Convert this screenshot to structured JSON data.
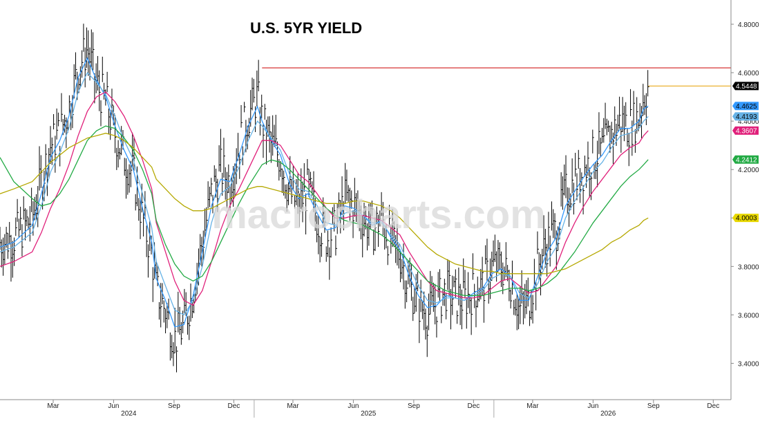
{
  "chart_data": {
    "type": "line",
    "title": "U.S. 5YR YIELD",
    "watermark": "macrocharts.com",
    "x_range": [
      "2023-12-11",
      "2026-12-28"
    ],
    "ylim": [
      3.25,
      4.9
    ],
    "y_ticks": [
      "4.8000",
      "4.6000",
      "4.4000",
      "4.2000",
      "4.0000",
      "3.8000",
      "3.6000",
      "3.4000"
    ],
    "month_ticks": [
      {
        "date": "2024-03-01",
        "label": "Mar"
      },
      {
        "date": "2024-06-01",
        "label": "Jun"
      },
      {
        "date": "2024-09-01",
        "label": "Sep"
      },
      {
        "date": "2024-12-01",
        "label": "Dec"
      },
      {
        "date": "2025-03-01",
        "label": "Mar"
      },
      {
        "date": "2025-06-01",
        "label": "Jun"
      },
      {
        "date": "2025-09-01",
        "label": "Sep"
      },
      {
        "date": "2025-12-01",
        "label": "Dec"
      },
      {
        "date": "2026-03-01",
        "label": "Mar"
      },
      {
        "date": "2026-06-01",
        "label": "Jun"
      },
      {
        "date": "2026-09-01",
        "label": "Sep"
      },
      {
        "date": "2026-12-01",
        "label": "Dec"
      }
    ],
    "year_labels": [
      {
        "date": "2024-07-15",
        "label": "2024"
      },
      {
        "date": "2025-07-15",
        "label": "2025"
      },
      {
        "date": "2026-07-15",
        "label": "2026"
      }
    ],
    "year_dividers": [
      "2025-01-01",
      "2026-01-01"
    ],
    "price_series": {
      "style": "hlc-bars",
      "color": "#000000",
      "x": [
        "2023-12-11",
        "2024-01-01",
        "2024-01-29",
        "2024-02-12",
        "2024-02-26",
        "2024-03-11",
        "2024-03-25",
        "2024-04-08",
        "2024-04-22",
        "2024-05-06",
        "2024-05-20",
        "2024-06-03",
        "2024-06-17",
        "2024-07-01",
        "2024-07-15",
        "2024-07-29",
        "2024-08-05",
        "2024-08-19",
        "2024-09-02",
        "2024-09-16",
        "2024-09-30",
        "2024-10-14",
        "2024-10-28",
        "2024-11-11",
        "2024-11-25",
        "2024-12-09",
        "2024-12-23",
        "2025-01-06",
        "2025-01-13",
        "2025-01-27",
        "2025-02-10",
        "2025-02-24",
        "2025-03-10",
        "2025-03-24",
        "2025-04-07",
        "2025-04-21",
        "2025-05-05",
        "2025-05-19",
        "2025-06-02",
        "2025-06-16",
        "2025-06-30",
        "2025-07-14",
        "2025-07-28",
        "2025-08-11",
        "2025-08-25",
        "2025-09-08",
        "2025-09-22",
        "2025-10-06",
        "2025-10-20",
        "2025-11-03",
        "2025-11-17",
        "2025-12-01",
        "2025-12-15",
        "2025-12-29",
        "2026-01-12",
        "2026-01-26",
        "2026-02-09",
        "2026-02-23",
        "2026-03-09",
        "2026-03-23",
        "2026-04-06",
        "2026-04-20",
        "2026-05-04",
        "2026-05-18",
        "2026-06-01",
        "2026-06-15",
        "2026-06-29",
        "2026-07-13",
        "2026-07-27",
        "2026-08-10",
        "2026-08-17",
        "2026-08-24"
      ],
      "values": [
        3.9,
        3.92,
        4.0,
        4.15,
        4.3,
        4.35,
        4.45,
        4.62,
        4.7,
        4.55,
        4.48,
        4.35,
        4.25,
        4.18,
        4.0,
        3.85,
        3.7,
        3.62,
        3.5,
        3.55,
        3.7,
        3.9,
        4.1,
        4.2,
        4.15,
        4.3,
        4.42,
        4.5,
        4.4,
        4.3,
        4.25,
        4.1,
        4.05,
        4.12,
        4.0,
        3.92,
        3.95,
        4.08,
        4.05,
        4.0,
        3.95,
        4.0,
        3.9,
        3.85,
        3.72,
        3.65,
        3.6,
        3.65,
        3.7,
        3.67,
        3.66,
        3.7,
        3.72,
        3.8,
        3.8,
        3.75,
        3.62,
        3.65,
        3.8,
        3.9,
        3.95,
        4.1,
        4.15,
        4.2,
        4.25,
        4.28,
        4.35,
        4.4,
        4.38,
        4.42,
        4.5,
        4.5448
      ]
    },
    "series": [
      {
        "color": "#3399ff",
        "last_value": 4.4625,
        "values": [
          3.88,
          3.9,
          3.97,
          4.1,
          4.25,
          4.32,
          4.42,
          4.58,
          4.66,
          4.57,
          4.5,
          4.38,
          4.28,
          4.2,
          4.04,
          3.9,
          3.75,
          3.66,
          3.55,
          3.56,
          3.68,
          3.86,
          4.05,
          4.16,
          4.15,
          4.26,
          4.38,
          4.46,
          4.4,
          4.32,
          4.26,
          4.14,
          4.08,
          4.1,
          4.02,
          3.95,
          3.96,
          4.05,
          4.04,
          4.01,
          3.97,
          3.99,
          3.92,
          3.87,
          3.76,
          3.68,
          3.63,
          3.64,
          3.68,
          3.67,
          3.66,
          3.69,
          3.71,
          3.77,
          3.79,
          3.76,
          3.66,
          3.66,
          3.76,
          3.86,
          3.92,
          4.05,
          4.11,
          4.17,
          4.22,
          4.26,
          4.32,
          4.37,
          4.37,
          4.4,
          4.45,
          4.4625
        ]
      },
      {
        "color": "#66b2e6",
        "last_value": 4.4193,
        "values": [
          3.86,
          3.88,
          3.94,
          4.05,
          4.19,
          4.27,
          4.37,
          4.52,
          4.6,
          4.56,
          4.51,
          4.42,
          4.32,
          4.24,
          4.1,
          3.96,
          3.82,
          3.72,
          3.62,
          3.6,
          3.66,
          3.8,
          3.98,
          4.1,
          4.13,
          4.21,
          4.32,
          4.4,
          4.38,
          4.33,
          4.28,
          4.18,
          4.12,
          4.11,
          4.05,
          3.98,
          3.97,
          4.02,
          4.03,
          4.01,
          3.98,
          3.98,
          3.93,
          3.89,
          3.8,
          3.72,
          3.66,
          3.65,
          3.67,
          3.67,
          3.66,
          3.68,
          3.7,
          3.75,
          3.77,
          3.76,
          3.69,
          3.67,
          3.73,
          3.82,
          3.88,
          4.0,
          4.07,
          4.13,
          4.19,
          4.23,
          4.29,
          4.34,
          4.35,
          4.37,
          4.4,
          4.4193
        ]
      },
      {
        "color": "#e0207a",
        "last_value": 4.3607,
        "values": [
          3.8,
          3.82,
          3.86,
          3.94,
          4.04,
          4.12,
          4.22,
          4.34,
          4.44,
          4.5,
          4.52,
          4.48,
          4.42,
          4.34,
          4.24,
          4.12,
          3.98,
          3.86,
          3.74,
          3.66,
          3.64,
          3.7,
          3.82,
          3.95,
          4.05,
          4.12,
          4.2,
          4.28,
          4.32,
          4.32,
          4.3,
          4.24,
          4.18,
          4.15,
          4.1,
          4.04,
          4.0,
          4.0,
          4.01,
          4.01,
          4.0,
          3.99,
          3.96,
          3.93,
          3.86,
          3.8,
          3.74,
          3.7,
          3.69,
          3.68,
          3.67,
          3.67,
          3.68,
          3.71,
          3.74,
          3.75,
          3.72,
          3.69,
          3.7,
          3.75,
          3.8,
          3.9,
          3.98,
          4.05,
          4.11,
          4.16,
          4.21,
          4.26,
          4.29,
          4.31,
          4.34,
          4.3607
        ]
      },
      {
        "color": "#22aa44",
        "last_value": 4.2412,
        "values": [
          4.25,
          4.15,
          4.08,
          4.05,
          4.06,
          4.1,
          4.16,
          4.24,
          4.32,
          4.36,
          4.38,
          4.37,
          4.33,
          4.28,
          4.2,
          4.1,
          3.99,
          3.89,
          3.81,
          3.76,
          3.74,
          3.76,
          3.82,
          3.9,
          3.98,
          4.06,
          4.13,
          4.19,
          4.22,
          4.24,
          4.23,
          4.2,
          4.16,
          4.12,
          4.08,
          4.04,
          4.01,
          3.99,
          3.98,
          3.97,
          3.95,
          3.93,
          3.9,
          3.86,
          3.82,
          3.78,
          3.74,
          3.72,
          3.7,
          3.69,
          3.68,
          3.68,
          3.68,
          3.69,
          3.7,
          3.71,
          3.71,
          3.7,
          3.71,
          3.73,
          3.76,
          3.81,
          3.86,
          3.92,
          3.98,
          4.03,
          4.08,
          4.13,
          4.17,
          4.2,
          4.22,
          4.2412
        ]
      },
      {
        "color": "#b5a800",
        "last_value": 4.0003,
        "values": [
          4.1,
          4.12,
          4.15,
          4.19,
          4.23,
          4.26,
          4.29,
          4.31,
          4.33,
          4.34,
          4.35,
          4.34,
          4.32,
          4.29,
          4.25,
          4.21,
          4.16,
          4.12,
          4.08,
          4.05,
          4.03,
          4.03,
          4.04,
          4.06,
          4.08,
          4.1,
          4.12,
          4.13,
          4.13,
          4.12,
          4.11,
          4.1,
          4.09,
          4.08,
          4.07,
          4.06,
          4.06,
          4.06,
          4.07,
          4.07,
          4.06,
          4.05,
          4.03,
          4.0,
          3.96,
          3.92,
          3.88,
          3.85,
          3.83,
          3.81,
          3.8,
          3.79,
          3.78,
          3.78,
          3.77,
          3.77,
          3.77,
          3.77,
          3.77,
          3.77,
          3.78,
          3.79,
          3.81,
          3.83,
          3.85,
          3.87,
          3.9,
          3.92,
          3.95,
          3.97,
          3.99,
          4.0003
        ]
      }
    ],
    "horizontal_lines": [
      {
        "value": 4.62,
        "from": "2025-01-13",
        "color": "#cc0000"
      },
      {
        "value": 4.5448,
        "from": "2026-08-24",
        "color": "#e6a000"
      }
    ],
    "value_tags": [
      {
        "label": "4.5448",
        "value": 4.5448,
        "bg": "#000000",
        "fg": "#ffffff"
      },
      {
        "label": "4.4625",
        "value": 4.4625,
        "bg": "#3399ff",
        "fg": "#000000"
      },
      {
        "label": "4.4193",
        "value": 4.4193,
        "bg": "#66b2e6",
        "fg": "#000000"
      },
      {
        "label": "4.3607",
        "value": 4.3607,
        "bg": "#e0207a",
        "fg": "#ffffff"
      },
      {
        "label": "4.2412",
        "value": 4.2412,
        "bg": "#22aa44",
        "fg": "#ffffff"
      },
      {
        "label": "4.0003",
        "value": 4.0003,
        "bg": "#e8d800",
        "fg": "#000000"
      }
    ]
  }
}
